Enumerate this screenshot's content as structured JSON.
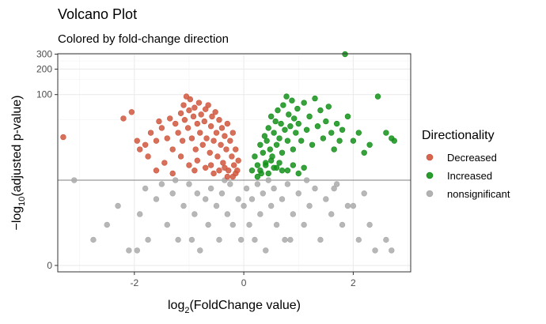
{
  "chart_data": {
    "type": "scatter",
    "title": "Volcano Plot",
    "subtitle": "Colored by fold-change direction",
    "xlabel": {
      "prefix": "log",
      "sub": "2",
      "rest": "(FoldChange value)"
    },
    "ylabel": {
      "prefix": "−log",
      "sub": "10",
      "rest": "(adjusted p-value)"
    },
    "xlim": [
      -3.4,
      3.05
    ],
    "x_ticks": [
      -2,
      0,
      2
    ],
    "x_tick_labels": [
      "-2",
      "0",
      "2"
    ],
    "y_scale": "transformed",
    "y_ticks": [
      0,
      100,
      200,
      300
    ],
    "y_tick_labels": [
      "0",
      "100",
      "200",
      "300"
    ],
    "significance_threshold": 9,
    "grid": true,
    "legend": {
      "title": "Directionality",
      "position": "right",
      "entries": [
        {
          "label": "Decreased",
          "color": "#D0573E"
        },
        {
          "label": "Increased",
          "color": "#14901A"
        },
        {
          "label": "nonsignificant",
          "color": "#AAAAAA"
        }
      ]
    },
    "series": [
      {
        "name": "Decreased",
        "color": "#D0573E",
        "points": [
          [
            -3.3,
            31
          ],
          [
            -2.2,
            52
          ],
          [
            -2.05,
            62
          ],
          [
            -1.95,
            28
          ],
          [
            -1.9,
            22
          ],
          [
            -1.8,
            25
          ],
          [
            -1.75,
            18
          ],
          [
            -1.7,
            35
          ],
          [
            -1.6,
            28
          ],
          [
            -1.55,
            48
          ],
          [
            -1.5,
            40
          ],
          [
            -1.45,
            15
          ],
          [
            -1.4,
            30
          ],
          [
            -1.35,
            52
          ],
          [
            -1.3,
            22
          ],
          [
            -1.25,
            45
          ],
          [
            -1.2,
            35
          ],
          [
            -1.15,
            60
          ],
          [
            -1.12,
            28
          ],
          [
            -1.1,
            75
          ],
          [
            -1.08,
            50
          ],
          [
            -1.05,
            95
          ],
          [
            -1.02,
            40
          ],
          [
            -1.0,
            65
          ],
          [
            -0.98,
            88
          ],
          [
            -0.95,
            30
          ],
          [
            -0.92,
            55
          ],
          [
            -0.9,
            70
          ],
          [
            -0.88,
            22
          ],
          [
            -0.85,
            45
          ],
          [
            -0.82,
            80
          ],
          [
            -0.8,
            35
          ],
          [
            -0.78,
            58
          ],
          [
            -0.75,
            25
          ],
          [
            -0.72,
            48
          ],
          [
            -0.7,
            67
          ],
          [
            -0.68,
            30
          ],
          [
            -0.65,
            75
          ],
          [
            -0.62,
            20
          ],
          [
            -0.6,
            42
          ],
          [
            -0.58,
            55
          ],
          [
            -0.55,
            28
          ],
          [
            -0.52,
            62
          ],
          [
            -0.5,
            35
          ],
          [
            -0.48,
            18
          ],
          [
            -0.45,
            50
          ],
          [
            -0.42,
            25
          ],
          [
            -0.4,
            40
          ],
          [
            -0.38,
            15
          ],
          [
            -0.35,
            32
          ],
          [
            -0.32,
            22
          ],
          [
            -0.3,
            45
          ],
          [
            -0.28,
            12
          ],
          [
            -0.25,
            28
          ],
          [
            -0.22,
            18
          ],
          [
            -0.2,
            35
          ],
          [
            -0.18,
            14
          ],
          [
            -0.15,
            22
          ],
          [
            -0.12,
            12
          ],
          [
            -0.1,
            16
          ],
          [
            -1.6,
            12
          ],
          [
            -1.3,
            11
          ],
          [
            -0.9,
            12
          ],
          [
            -0.55,
            11
          ],
          [
            -0.3,
            10
          ],
          [
            -1.0,
            14
          ],
          [
            -0.7,
            13
          ],
          [
            -0.45,
            12
          ],
          [
            -0.2,
            10
          ],
          [
            -1.15,
            18
          ],
          [
            -0.85,
            16
          ],
          [
            -0.6,
            14
          ],
          [
            -0.35,
            13
          ],
          [
            -0.15,
            11
          ]
        ]
      },
      {
        "name": "Increased",
        "color": "#14901A",
        "points": [
          [
            0.15,
            12
          ],
          [
            0.2,
            18
          ],
          [
            0.25,
            14
          ],
          [
            0.3,
            25
          ],
          [
            0.32,
            11
          ],
          [
            0.35,
            20
          ],
          [
            0.38,
            32
          ],
          [
            0.4,
            15
          ],
          [
            0.42,
            28
          ],
          [
            0.45,
            40
          ],
          [
            0.48,
            22
          ],
          [
            0.5,
            55
          ],
          [
            0.52,
            18
          ],
          [
            0.55,
            35
          ],
          [
            0.58,
            48
          ],
          [
            0.6,
            25
          ],
          [
            0.62,
            65
          ],
          [
            0.65,
            30
          ],
          [
            0.68,
            45
          ],
          [
            0.7,
            20
          ],
          [
            0.72,
            75
          ],
          [
            0.75,
            38
          ],
          [
            0.78,
            95
          ],
          [
            0.8,
            28
          ],
          [
            0.82,
            58
          ],
          [
            0.85,
            42
          ],
          [
            0.88,
            85
          ],
          [
            0.9,
            22
          ],
          [
            0.92,
            52
          ],
          [
            0.95,
            35
          ],
          [
            0.98,
            68
          ],
          [
            1.0,
            45
          ],
          [
            1.05,
            28
          ],
          [
            1.1,
            80
          ],
          [
            1.15,
            38
          ],
          [
            1.2,
            55
          ],
          [
            1.25,
            25
          ],
          [
            1.3,
            90
          ],
          [
            1.35,
            42
          ],
          [
            1.4,
            65
          ],
          [
            1.45,
            30
          ],
          [
            1.5,
            48
          ],
          [
            1.55,
            72
          ],
          [
            1.6,
            35
          ],
          [
            1.65,
            22
          ],
          [
            1.7,
            45
          ],
          [
            1.75,
            28
          ],
          [
            1.8,
            38
          ],
          [
            1.85,
            300
          ],
          [
            1.9,
            55
          ],
          [
            2.0,
            28
          ],
          [
            2.1,
            35
          ],
          [
            2.2,
            20
          ],
          [
            2.3,
            25
          ],
          [
            2.45,
            95
          ],
          [
            2.6,
            35
          ],
          [
            2.7,
            30
          ],
          [
            2.75,
            28
          ],
          [
            0.3,
            12
          ],
          [
            0.45,
            11
          ],
          [
            0.6,
            13
          ],
          [
            0.8,
            12
          ],
          [
            1.0,
            11
          ],
          [
            0.4,
            14
          ],
          [
            0.55,
            13
          ],
          [
            0.7,
            12
          ],
          [
            0.25,
            10
          ],
          [
            0.5,
            16
          ],
          [
            0.65,
            15
          ],
          [
            0.9,
            14
          ],
          [
            1.1,
            13
          ]
        ]
      },
      {
        "name": "nonsignificant",
        "color": "#AAAAAA",
        "points": [
          [
            -3.1,
            9
          ],
          [
            -2.75,
            1
          ],
          [
            -2.5,
            2
          ],
          [
            -2.3,
            4
          ],
          [
            -2.1,
            0.5
          ],
          [
            -1.9,
            3
          ],
          [
            -1.8,
            7
          ],
          [
            -1.75,
            1
          ],
          [
            -1.6,
            5
          ],
          [
            -1.5,
            8
          ],
          [
            -1.4,
            2
          ],
          [
            -1.3,
            6
          ],
          [
            -1.2,
            1
          ],
          [
            -1.1,
            4
          ],
          [
            -1.0,
            8
          ],
          [
            -0.9,
            3
          ],
          [
            -0.85,
            6
          ],
          [
            -0.8,
            0.5
          ],
          [
            -0.7,
            5
          ],
          [
            -0.65,
            2
          ],
          [
            -0.6,
            7
          ],
          [
            -0.5,
            4
          ],
          [
            -0.45,
            1
          ],
          [
            -0.4,
            6
          ],
          [
            -0.3,
            3
          ],
          [
            -0.25,
            8
          ],
          [
            -0.2,
            2
          ],
          [
            -0.1,
            5
          ],
          [
            -0.05,
            1
          ],
          [
            0.0,
            4
          ],
          [
            0.05,
            7
          ],
          [
            0.1,
            2
          ],
          [
            0.15,
            5
          ],
          [
            0.2,
            1
          ],
          [
            0.25,
            8
          ],
          [
            0.3,
            3
          ],
          [
            0.35,
            6
          ],
          [
            0.4,
            0.5
          ],
          [
            0.5,
            4
          ],
          [
            0.55,
            7
          ],
          [
            0.6,
            2
          ],
          [
            0.7,
            5
          ],
          [
            0.75,
            1
          ],
          [
            0.8,
            8
          ],
          [
            0.9,
            3
          ],
          [
            1.0,
            6
          ],
          [
            1.1,
            2
          ],
          [
            1.2,
            4
          ],
          [
            1.3,
            7
          ],
          [
            1.4,
            1
          ],
          [
            1.5,
            5
          ],
          [
            1.6,
            3
          ],
          [
            1.7,
            8
          ],
          [
            1.8,
            2
          ],
          [
            2.0,
            4
          ],
          [
            2.1,
            1
          ],
          [
            2.2,
            6
          ],
          [
            2.3,
            2
          ],
          [
            2.4,
            0.5
          ],
          [
            2.6,
            1
          ],
          [
            2.7,
            0.5
          ],
          [
            -1.95,
            0.5
          ],
          [
            -1.25,
            9
          ],
          [
            -0.35,
            9
          ],
          [
            0.45,
            9
          ],
          [
            1.15,
            9
          ],
          [
            1.65,
            7
          ],
          [
            -0.95,
            1
          ],
          [
            0.85,
            1
          ],
          [
            1.9,
            4
          ]
        ]
      }
    ]
  }
}
